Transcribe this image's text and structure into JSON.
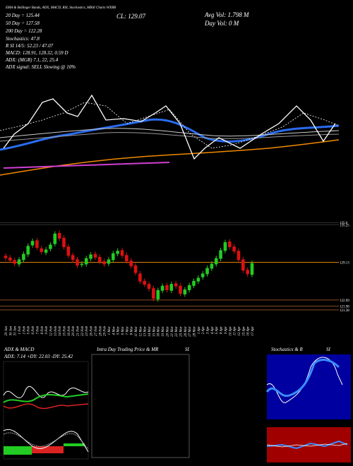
{
  "header": {
    "title": "EMA & Bollinger Bands, ADX, MACD, RSI, Stochastics, MRSI Charts WXBB",
    "ema20": "20 Day = 125.44",
    "ema50": "50 Day = 127.58",
    "ema200": "200 Day = 122.28",
    "stochastics": "Stochastics: 47.8",
    "rsi": "R                SI 14/5: 52.23 / 47.07",
    "macd": "MACD: 128.91, 128.32, 0.59 D",
    "adx": "ADX:                  (MGR) 7.1, 22, 25.4",
    "adx_signal": "ADX  signal: SELL Slowing @ 10%",
    "close": "CL: 129.07",
    "avg_vol": "Avg Vol: 1.798  M",
    "day_vol": "Day Vol: 0  M"
  },
  "chart_data": {
    "type": "candlestick",
    "categories": [
      "29 Jan",
      "30 Jan",
      "31 Jan",
      "1 Feb",
      "2 Feb",
      "5 Feb",
      "6 Feb",
      "7 Feb",
      "8 Feb",
      "9 Feb",
      "12 Feb",
      "13 Feb",
      "14 Feb",
      "15 Feb",
      "16 Feb",
      "20 Feb",
      "21 Feb",
      "22 Feb",
      "23 Feb",
      "26 Feb",
      "27 Feb",
      "28 Feb",
      "29 Feb",
      "1 Mar",
      "4 Mar",
      "5 Mar",
      "6 Mar",
      "7 Mar",
      "8 Mar",
      "11 Mar",
      "12 Mar",
      "13 Mar",
      "14 Mar",
      "15 Mar",
      "18 Mar",
      "19 Mar",
      "20 Mar",
      "21 Mar",
      "22 Mar",
      "25 Mar",
      "26 Mar",
      "27 Mar",
      "28 Mar",
      "1 Apr",
      "2 Apr",
      "3 Apr",
      "4 Apr",
      "5 Apr",
      "8 Apr",
      "9 Apr",
      "10 Apr",
      "11 Apr",
      "12 Apr",
      "15 Apr",
      "16 Apr",
      "17 Apr"
    ],
    "open": [
      130.2,
      129.9,
      129.5,
      128.8,
      129.5,
      130.4,
      131.9,
      132.7,
      131.4,
      130.7,
      131.3,
      132.1,
      133.9,
      133.1,
      131.7,
      130.3,
      129.6,
      128.7,
      128.8,
      129.7,
      130.5,
      130.0,
      129.3,
      128.9,
      129.5,
      130.5,
      131.1,
      130.3,
      129.4,
      128.6,
      127.3,
      126.1,
      125.6,
      124.9,
      123.1,
      124.5,
      125.4,
      124.5,
      125.7,
      125.3,
      123.9,
      124.6,
      125.3,
      126.0,
      126.7,
      127.2,
      128.1,
      128.8,
      129.7,
      131.0,
      132.5,
      131.7,
      131.0,
      129.6,
      127.9,
      127.1
    ],
    "high": [
      130.6,
      130.3,
      129.9,
      130.0,
      130.9,
      132.2,
      133.0,
      133.1,
      131.8,
      131.6,
      132.4,
      134.2,
      134.3,
      133.5,
      132.1,
      130.7,
      130.0,
      129.3,
      130.2,
      130.8,
      130.9,
      130.4,
      129.7,
      130.0,
      131.0,
      131.4,
      131.5,
      130.7,
      129.8,
      129.0,
      127.7,
      126.5,
      126.0,
      125.3,
      125.0,
      125.7,
      125.8,
      126.0,
      126.1,
      125.7,
      125.1,
      125.8,
      126.5,
      127.0,
      127.7,
      128.6,
      129.3,
      130.2,
      131.5,
      132.8,
      132.9,
      132.1,
      131.4,
      130.0,
      128.3,
      129.4
    ],
    "low": [
      129.4,
      129.0,
      128.5,
      128.4,
      129.1,
      130.0,
      131.5,
      131.1,
      130.4,
      130.3,
      130.9,
      131.7,
      132.6,
      131.2,
      129.8,
      129.1,
      128.2,
      128.3,
      128.4,
      129.3,
      129.5,
      128.8,
      128.4,
      128.5,
      129.1,
      130.1,
      129.8,
      128.9,
      128.1,
      127.0,
      125.6,
      125.1,
      124.4,
      122.8,
      122.7,
      124.1,
      124.2,
      124.1,
      124.8,
      123.6,
      123.5,
      124.2,
      124.9,
      125.6,
      126.3,
      126.8,
      127.7,
      128.4,
      129.3,
      130.6,
      131.2,
      130.5,
      129.1,
      127.4,
      126.8,
      126.7
    ],
    "close": [
      129.8,
      129.4,
      128.9,
      129.6,
      130.5,
      131.8,
      132.6,
      131.5,
      130.8,
      131.2,
      132.0,
      133.8,
      133.0,
      131.6,
      130.2,
      129.5,
      128.6,
      128.9,
      129.8,
      130.4,
      129.9,
      129.2,
      128.8,
      129.6,
      130.6,
      131.0,
      130.2,
      129.3,
      128.5,
      127.4,
      126.0,
      125.5,
      124.8,
      123.2,
      124.6,
      125.3,
      124.6,
      125.6,
      125.2,
      124.0,
      124.7,
      125.4,
      126.1,
      126.6,
      127.3,
      128.2,
      128.9,
      129.8,
      131.1,
      132.4,
      131.6,
      130.9,
      129.5,
      127.8,
      127.2,
      129.0
    ],
    "up_color": "#22cc22",
    "down_color": "#dd1111",
    "levels": [
      135.6,
      135.25,
      129.13,
      122.99,
      121.98,
      121.38
    ],
    "ylim": [
      120.1,
      138.5
    ]
  },
  "panels": {
    "adx_title": "ADX  & MACD",
    "adx_values": "ADX: 7.14  +DY: 22.03  -DY: 25.42",
    "intraday_title": "Intra Day Trading Price  & MR",
    "intraday_si": "SI",
    "stoch_title": "Stochastics & R",
    "stoch_si": "SI"
  }
}
